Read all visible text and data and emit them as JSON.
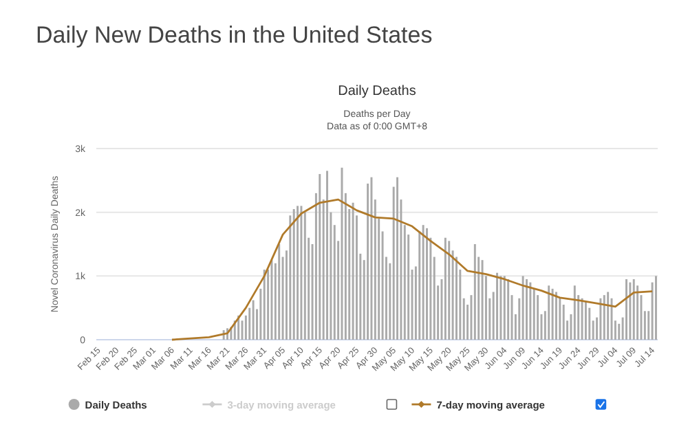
{
  "chart_data": {
    "type": "bar",
    "title": "Daily New Deaths in the United States",
    "subtitle": "Daily Deaths",
    "annotations": [
      "Deaths per Day",
      "Data as of 0:00 GMT+8"
    ],
    "ylabel": "Novel Coronavirus Daily Deaths",
    "categories": [
      "Feb 15",
      null,
      null,
      null,
      null,
      "Feb 20",
      null,
      null,
      null,
      null,
      "Feb 25",
      null,
      null,
      null,
      null,
      "Mar 01",
      null,
      null,
      null,
      null,
      "Mar 06",
      null,
      null,
      null,
      null,
      "Mar 11",
      null,
      null,
      null,
      null,
      "Mar 16",
      null,
      null,
      null,
      null,
      "Mar 21",
      null,
      null,
      null,
      null,
      "Mar 26",
      null,
      null,
      null,
      null,
      "Mar 31",
      null,
      null,
      null,
      null,
      "Apr 05",
      null,
      null,
      null,
      null,
      "Apr 10",
      null,
      null,
      null,
      null,
      "Apr 15",
      null,
      null,
      null,
      null,
      "Apr 20",
      null,
      null,
      null,
      null,
      "Apr 25",
      null,
      null,
      null,
      null,
      "Apr 30",
      null,
      null,
      null,
      null,
      "May 05",
      null,
      null,
      null,
      null,
      "May 10",
      null,
      null,
      null,
      null,
      "May 15",
      null,
      null,
      null,
      null,
      "May 20",
      null,
      null,
      null,
      null,
      "May 25",
      null,
      null,
      null,
      null,
      "May 30",
      null,
      null,
      null,
      null,
      "Jun 04",
      null,
      null,
      null,
      null,
      "Jun 09",
      null,
      null,
      null,
      null,
      "Jun 14",
      null,
      null,
      null,
      null,
      "Jun 19",
      null,
      null,
      null,
      null,
      "Jun 24",
      null,
      null,
      null,
      null,
      "Jun 29",
      null,
      null,
      null,
      null,
      "Jul 04",
      null,
      null,
      null,
      null,
      "Jul 09",
      null,
      null,
      null,
      null,
      "Jul 14",
      null
    ],
    "series": [
      {
        "name": "Daily Deaths",
        "color": "#aaaaaa",
        "values": [
          0,
          0,
          0,
          0,
          0,
          0,
          0,
          0,
          0,
          0,
          0,
          0,
          0,
          0,
          0,
          0,
          0,
          0,
          0,
          0,
          0,
          0,
          0,
          0,
          0,
          0,
          0,
          0,
          0,
          0,
          0,
          0,
          0,
          0,
          150,
          180,
          200,
          300,
          380,
          300,
          380,
          500,
          620,
          480,
          800,
          1100,
          1100,
          1250,
          1200,
          1500,
          1300,
          1400,
          1950,
          2050,
          2100,
          2100,
          2000,
          1600,
          1500,
          2300,
          2600,
          2200,
          2650,
          2000,
          1800,
          1550,
          2700,
          2300,
          2050,
          2150,
          1950,
          1350,
          1250,
          2450,
          2550,
          2200,
          1900,
          1700,
          1300,
          1200,
          2400,
          2550,
          2200,
          1800,
          1650,
          1100,
          1150,
          1700,
          1800,
          1750,
          1600,
          1300,
          850,
          950,
          1600,
          1550,
          1400,
          1300,
          1100,
          650,
          550,
          700,
          1500,
          1300,
          1250,
          1000,
          650,
          750,
          1050,
          1000,
          1000,
          950,
          700,
          400,
          650,
          1000,
          950,
          900,
          800,
          700,
          400,
          450,
          850,
          800,
          750,
          650,
          550,
          300,
          400,
          850,
          700,
          650,
          600,
          500,
          300,
          350,
          650,
          700,
          750,
          650,
          300,
          250,
          350,
          950,
          900,
          950,
          850,
          700,
          450,
          450,
          900,
          1000
        ]
      },
      {
        "name": "3-day moving average",
        "type": "line",
        "color": "#cccccc",
        "values": [
          null,
          null,
          null,
          null,
          null,
          null,
          null,
          null,
          null,
          null,
          null,
          null,
          null,
          null,
          null,
          null,
          null,
          null,
          null,
          null,
          null,
          null,
          null,
          null,
          null,
          null,
          null,
          null,
          null,
          null,
          null,
          null,
          null,
          null,
          null,
          null,
          null,
          null,
          null,
          null,
          null,
          null,
          null,
          null,
          null,
          null,
          null,
          null,
          null,
          null,
          null,
          null,
          null,
          null,
          null,
          null,
          null,
          null,
          null,
          null,
          null,
          null,
          null,
          null,
          null,
          null,
          null,
          null,
          null,
          null,
          null,
          null,
          null,
          null,
          null,
          null,
          null,
          null,
          null,
          null,
          null,
          null,
          null,
          null,
          null,
          null,
          null,
          null,
          null,
          null,
          null,
          null,
          null,
          null,
          null,
          null,
          null,
          null,
          null,
          null,
          null,
          null,
          null,
          null,
          null,
          null,
          null,
          null,
          null,
          null,
          null,
          null,
          null,
          null,
          null,
          null,
          null,
          null,
          null,
          null,
          null,
          null,
          null,
          null,
          null,
          null,
          null,
          null,
          null,
          null,
          null,
          null,
          null,
          null,
          null,
          null,
          null,
          null,
          null,
          null,
          null,
          null,
          null,
          null,
          null,
          null,
          null,
          null,
          null,
          null,
          null,
          null
        ]
      },
      {
        "name": "7-day moving average",
        "type": "line",
        "color": "#b07a2a",
        "x": [
          "Mar 06",
          "Mar 11",
          "Mar 16",
          "Mar 21",
          "Mar 26",
          "Mar 31",
          "Apr 05",
          "Apr 10",
          "Apr 15",
          "Apr 20",
          "Apr 25",
          "Apr 30",
          "May 05",
          "May 10",
          "May 15",
          "May 20",
          "May 25",
          "May 30",
          "Jun 04",
          "Jun 09",
          "Jun 14",
          "Jun 19",
          "Jun 24",
          "Jun 29",
          "Jul 04",
          "Jul 09",
          "Jul 14"
        ],
        "values": [
          0,
          20,
          40,
          100,
          500,
          1000,
          1650,
          1980,
          2150,
          2200,
          2030,
          1920,
          1900,
          1780,
          1550,
          1340,
          1080,
          1030,
          950,
          850,
          770,
          660,
          620,
          570,
          520,
          740,
          760
        ]
      }
    ],
    "ylim": [
      0,
      3000
    ],
    "yticks": [
      0,
      {
        "value": 1000,
        "label": "1k"
      },
      {
        "value": 2000,
        "label": "2k"
      },
      {
        "value": 3000,
        "label": "3k"
      }
    ],
    "grid": "y",
    "legend": "bottom",
    "marker": "none",
    "line_style": "solid"
  }
}
